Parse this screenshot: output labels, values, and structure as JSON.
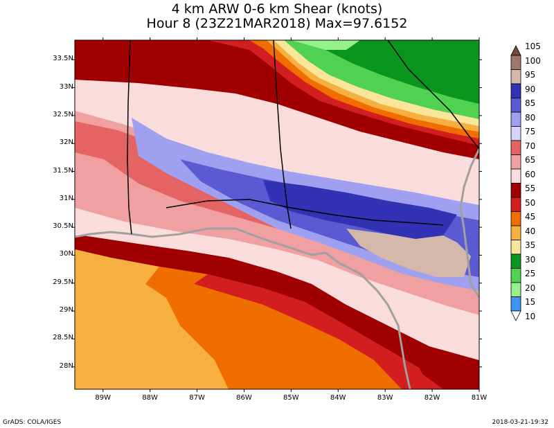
{
  "title": {
    "line1": "4 km ARW 0-6 km Shear (knots)",
    "line2": "Hour 8 (23Z21MAR2018) Max=97.6152"
  },
  "axes": {
    "lat_labels": [
      "33.5N",
      "33N",
      "32.5N",
      "32N",
      "31.5N",
      "31N",
      "30.5N",
      "30N",
      "29.5N",
      "29N",
      "28.5N",
      "28N"
    ],
    "lat_values": [
      33.5,
      33,
      32.5,
      32,
      31.5,
      31,
      30.5,
      30,
      29.5,
      29,
      28.5,
      28
    ],
    "lon_labels": [
      "89W",
      "88W",
      "87W",
      "86W",
      "85W",
      "84W",
      "83W",
      "82W",
      "81W"
    ],
    "lon_values": [
      -89,
      -88,
      -87,
      -86,
      -85,
      -84,
      -83,
      -82,
      -81
    ],
    "lat_range": [
      27.6,
      33.85
    ],
    "lon_range": [
      -89.6,
      -81
    ]
  },
  "legend": {
    "levels": [
      "105",
      "100",
      "95",
      "90",
      "85",
      "80",
      "75",
      "70",
      "65",
      "60",
      "55",
      "50",
      "45",
      "40",
      "35",
      "30",
      "25",
      "20",
      "15",
      "10"
    ],
    "colors": [
      "#6e4a37",
      "#a0786a",
      "#d4b8aa",
      "#3232b4",
      "#5a5ad2",
      "#a0a0f0",
      "#d4d4fa",
      "#e46464",
      "#f0a0a0",
      "#fadcdc",
      "#a00000",
      "#d21e1e",
      "#f06e00",
      "#f5b040",
      "#fae69a",
      "#0a961e",
      "#50d250",
      "#96f08c",
      "#3c96f0",
      "#82beff"
    ]
  },
  "footer": {
    "left": "GrADS: COLA/IGES",
    "right": "2018-03-21-19:32"
  }
}
